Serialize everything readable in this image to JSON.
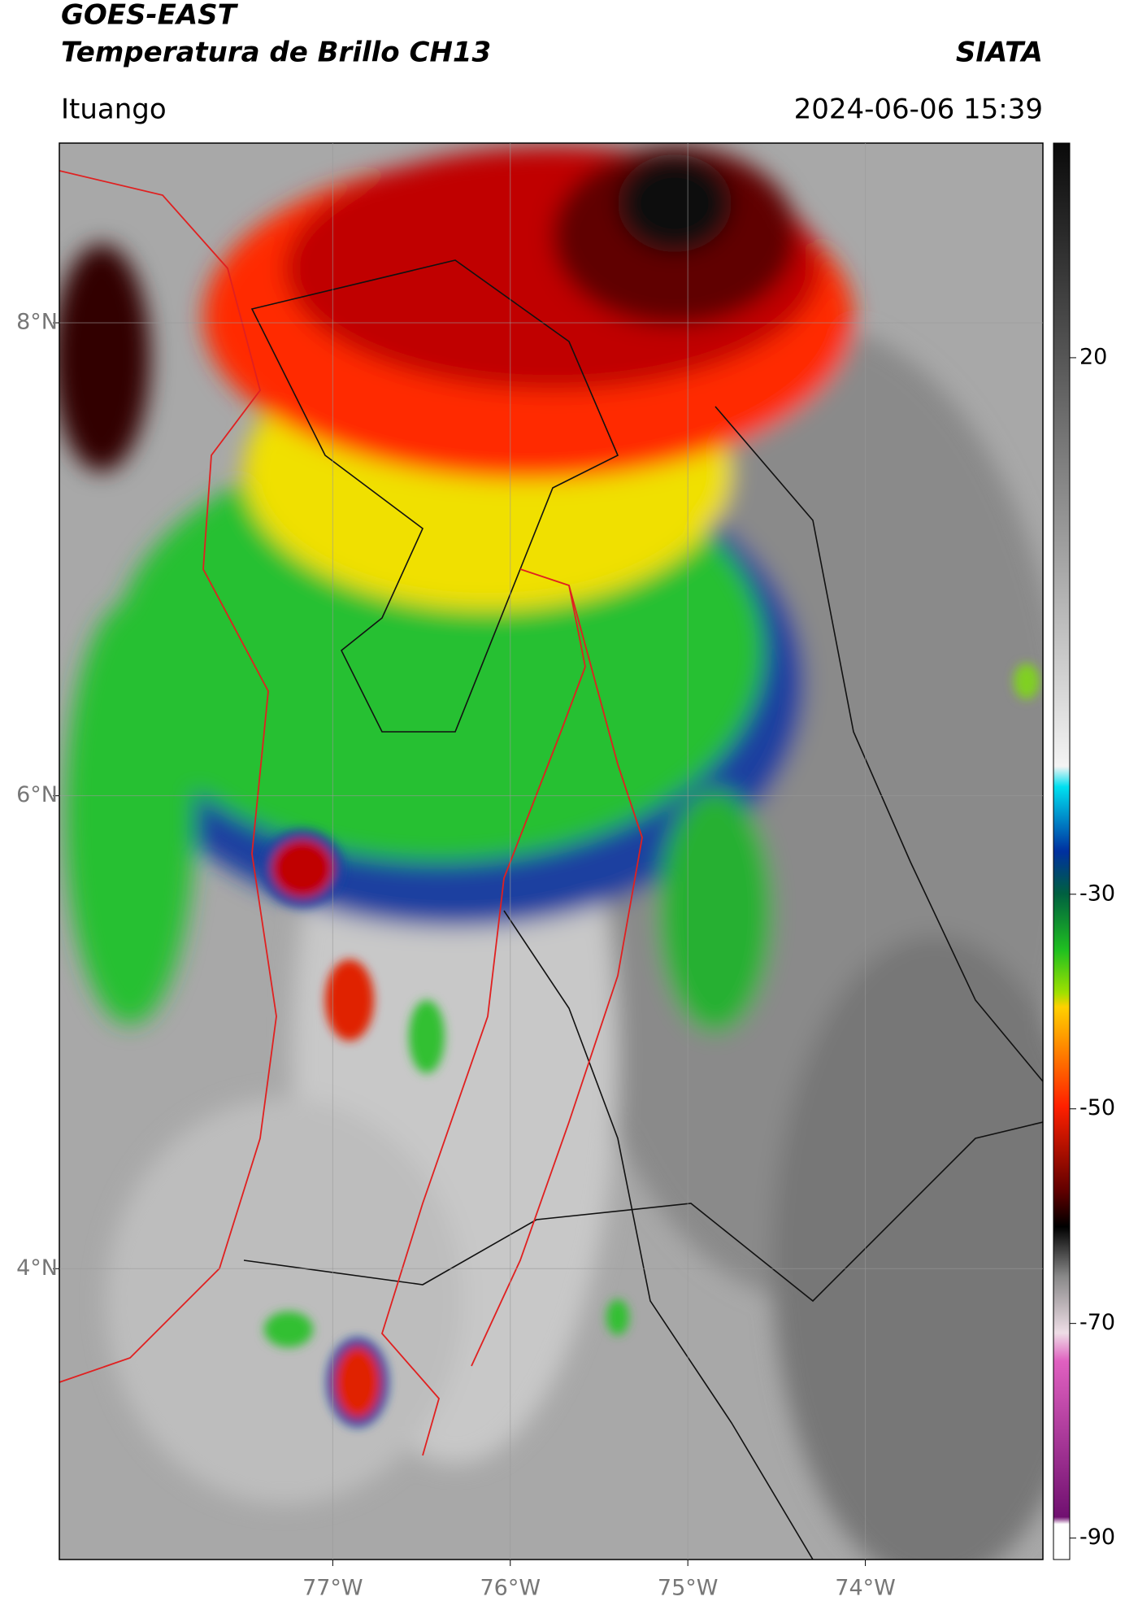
{
  "header": {
    "title": "GOES-EAST",
    "subtitle": "Temperatura de Brillo CH13",
    "brand": "SIATA",
    "location": "Ituango",
    "datetime": "2024-06-06 15:39"
  },
  "map": {
    "xlim": [
      -78.54,
      -73.0
    ],
    "ylim": [
      2.77,
      8.76
    ],
    "xticks": [
      {
        "value": -77,
        "label": "77°W"
      },
      {
        "value": -76,
        "label": "76°W"
      },
      {
        "value": -75,
        "label": "75°W"
      },
      {
        "value": -74,
        "label": "74°W"
      }
    ],
    "yticks": [
      {
        "value": 4,
        "label": "4°N"
      },
      {
        "value": 6,
        "label": "6°N"
      },
      {
        "value": 8,
        "label": "8°N"
      }
    ],
    "grid": true
  },
  "colorbar": {
    "lim": [
      -92,
      40
    ],
    "ticks": [
      -90,
      -70,
      -50,
      -30,
      20
    ]
  }
}
